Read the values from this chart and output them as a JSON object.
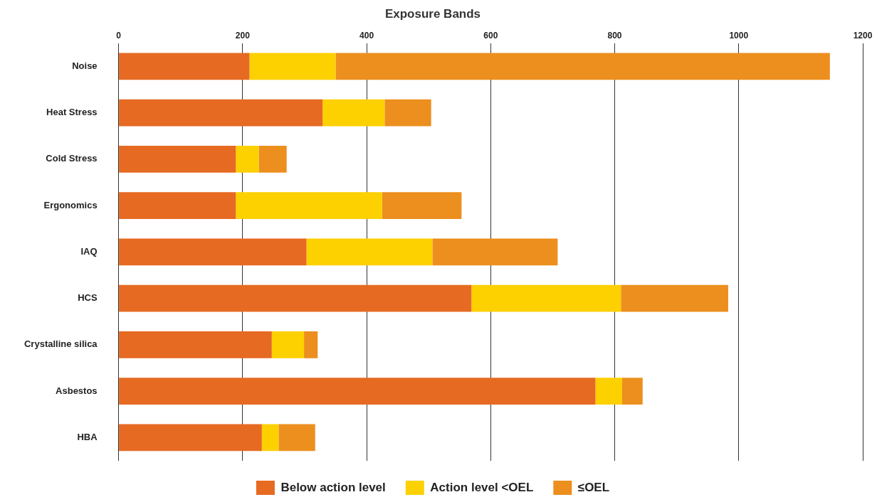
{
  "chart_data": {
    "type": "bar",
    "orientation": "horizontal",
    "stacked": true,
    "title": "Exposure Bands",
    "categories": [
      "Noise",
      "Heat Stress",
      "Cold Stress",
      "Ergonomics",
      "IAQ",
      "HCS",
      "Crystalline silica",
      "Asbestos",
      "HBA"
    ],
    "series": [
      {
        "name": "Below action level",
        "color": "#e66a22",
        "values": [
          211,
          329,
          189,
          189,
          303,
          569,
          247,
          769,
          231
        ]
      },
      {
        "name": "Action level <OEL",
        "color": "#fdd000",
        "values": [
          139,
          100,
          37,
          236,
          203,
          241,
          52,
          43,
          27
        ]
      },
      {
        "name": "≤OEL",
        "color": "#ec8f1e",
        "values": [
          797,
          75,
          45,
          128,
          202,
          173,
          22,
          33,
          59
        ]
      }
    ],
    "xlim": [
      0,
      1200
    ],
    "xticks": [
      0,
      200,
      400,
      600,
      800,
      1000,
      1200
    ],
    "grid": "x",
    "legend": "bottom"
  }
}
